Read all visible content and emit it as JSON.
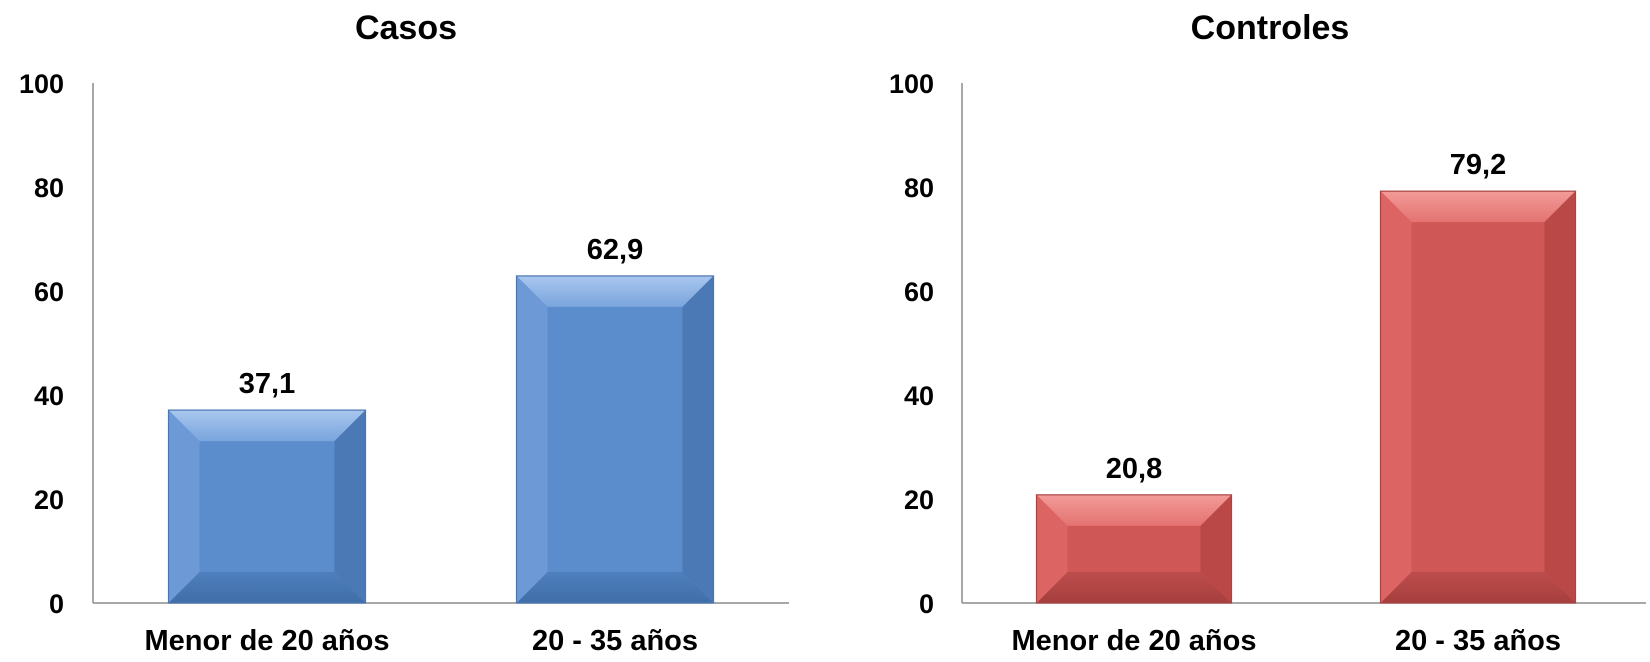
{
  "chart_data": [
    {
      "type": "bar",
      "title": "Casos",
      "categories": [
        "Menor de 20 años",
        "20 - 35 años"
      ],
      "values": [
        37.1,
        62.9
      ],
      "value_labels": [
        "37,1",
        "62,9"
      ],
      "ylim": [
        0,
        100
      ],
      "yticks": [
        0,
        20,
        40,
        60,
        80,
        100
      ],
      "xlabel": "",
      "ylabel": "",
      "grid": false,
      "color": "#5b8ccb"
    },
    {
      "type": "bar",
      "title": "Controles",
      "categories": [
        "Menor de 20 años",
        "20 - 35 años"
      ],
      "values": [
        20.8,
        79.2
      ],
      "value_labels": [
        "20,8",
        "79,2"
      ],
      "ylim": [
        0,
        100
      ],
      "yticks": [
        0,
        20,
        40,
        60,
        80,
        100
      ],
      "xlabel": "",
      "ylabel": "",
      "grid": false,
      "color": "#cf5756"
    }
  ]
}
